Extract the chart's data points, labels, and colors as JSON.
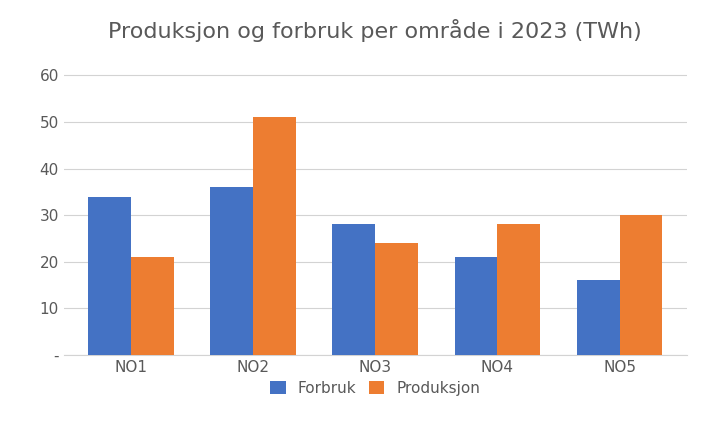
{
  "title": "Produksjon og forbruk per område i 2023 (TWh)",
  "categories": [
    "NO1",
    "NO2",
    "NO3",
    "NO4",
    "NO5"
  ],
  "forbruk": [
    34,
    36,
    28,
    21,
    16
  ],
  "produksjon": [
    21,
    51,
    24,
    28,
    30
  ],
  "forbruk_color": "#4472C4",
  "produksjon_color": "#ED7D31",
  "legend_labels": [
    "Forbruk",
    "Produksjon"
  ],
  "ylim": [
    0,
    65
  ],
  "yticks": [
    0,
    10,
    20,
    30,
    40,
    50,
    60
  ],
  "ytick_labels": [
    "-",
    "10",
    "20",
    "30",
    "40",
    "50",
    "60"
  ],
  "title_fontsize": 16,
  "tick_fontsize": 11,
  "legend_fontsize": 11,
  "bar_width": 0.35,
  "background_color": "#ffffff",
  "grid_color": "#d3d3d3",
  "text_color": "#595959"
}
